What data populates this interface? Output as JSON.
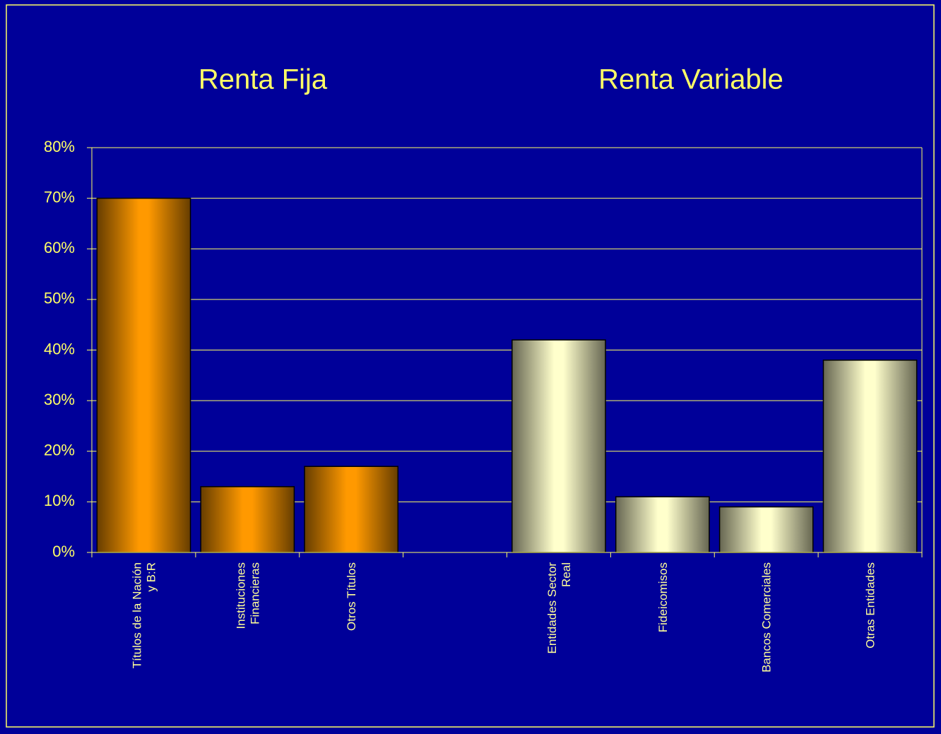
{
  "chart_data": {
    "type": "bar",
    "annotations": [
      "Renta Fija",
      "Renta Variable"
    ],
    "categories": [
      "Títulos de la Nación\ny B:R",
      "Instituciones\nFinancieras",
      "Otros Títulos",
      null,
      "Entidades Sector\nReal",
      "Fideicomisos",
      "Bancos Comerciales",
      "Otras Entidades"
    ],
    "values": [
      70,
      13,
      17,
      null,
      42,
      11,
      9,
      38
    ],
    "colors": [
      "#ff9900",
      "#ff9900",
      "#ff9900",
      null,
      "#ffffcc",
      "#ffffcc",
      "#ffffcc",
      "#ffffcc"
    ],
    "ylim": [
      0,
      80
    ],
    "yticks": [
      {
        "value": 0,
        "label": "0%"
      },
      {
        "value": 10,
        "label": "10%"
      },
      {
        "value": 20,
        "label": "20%"
      },
      {
        "value": 30,
        "label": "30%"
      },
      {
        "value": 40,
        "label": "40%"
      },
      {
        "value": 50,
        "label": "50%"
      },
      {
        "value": 60,
        "label": "60%"
      },
      {
        "value": 70,
        "label": "70%"
      },
      {
        "value": 80,
        "label": "80%"
      }
    ],
    "grid": true
  }
}
